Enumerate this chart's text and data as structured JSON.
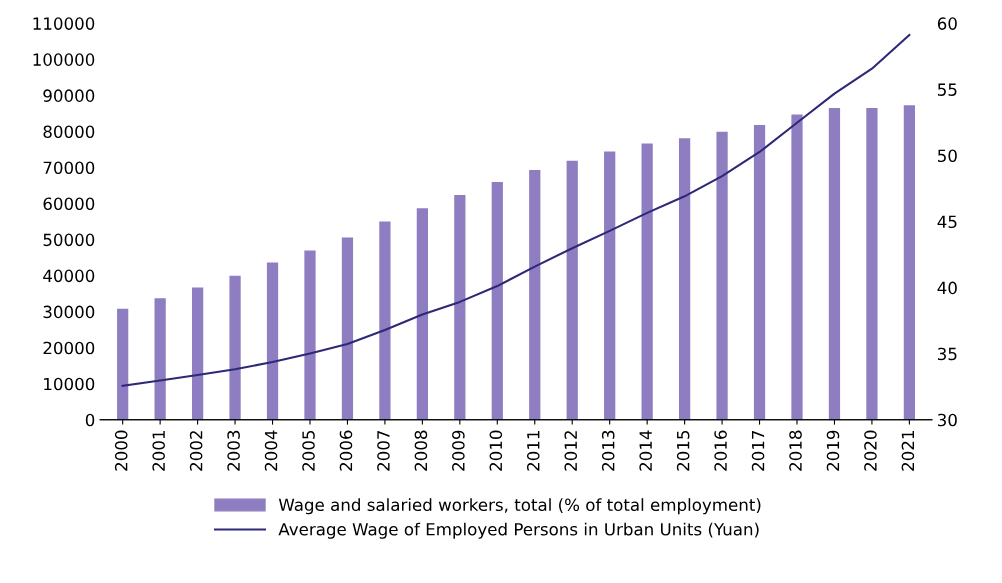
{
  "chart_data": {
    "type": "bar",
    "categories": [
      "2000",
      "2001",
      "2002",
      "2003",
      "2004",
      "2005",
      "2006",
      "2007",
      "2008",
      "2009",
      "2010",
      "2011",
      "2012",
      "2013",
      "2014",
      "2015",
      "2016",
      "2017",
      "2018",
      "2019",
      "2020",
      "2021"
    ],
    "series": [
      {
        "name": "Wage and salaried workers, total (% of total employment)",
        "axis": "y2",
        "color": "#8e7dc1",
        "values": [
          38.4,
          39.2,
          40.0,
          40.9,
          41.9,
          42.8,
          43.8,
          45.0,
          46.0,
          47.0,
          48.0,
          48.9,
          49.6,
          50.3,
          50.9,
          51.3,
          51.8,
          52.3,
          53.1,
          53.6,
          53.6,
          53.8
        ]
      },
      {
        "name": "Average Wage of Employed Persons in Urban Units (Yuan)",
        "type": "line",
        "color": "#2e2878",
        "values": [
          9400,
          10900,
          12400,
          14000,
          16000,
          18400,
          21000,
          24900,
          29200,
          32700,
          37100,
          42500,
          47600,
          52400,
          57400,
          62000,
          67600,
          74300,
          82400,
          90500,
          97400,
          106800
        ]
      }
    ],
    "ylim": [
      0,
      110000
    ],
    "yticks": [
      0,
      10000,
      20000,
      30000,
      40000,
      50000,
      60000,
      70000,
      80000,
      90000,
      100000,
      110000
    ],
    "y2lim": [
      30,
      60
    ],
    "y2ticks": [
      30,
      35,
      40,
      45,
      50,
      55,
      60
    ],
    "grid": false,
    "legend": "bottom",
    "marker": "none",
    "line_style": "solid"
  }
}
